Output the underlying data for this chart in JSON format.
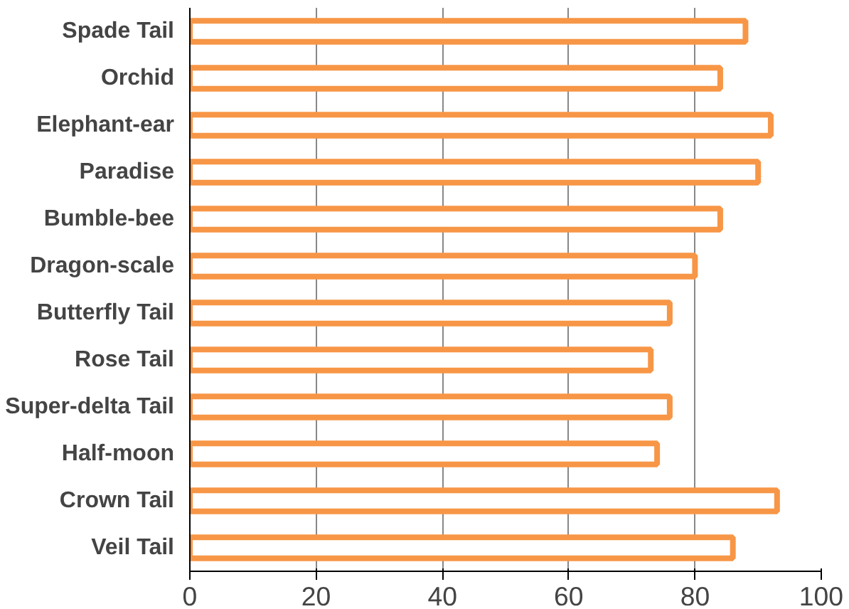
{
  "chart_data": {
    "type": "bar",
    "orientation": "horizontal",
    "categories": [
      "Spade Tail",
      "Orchid",
      "Elephant-ear",
      "Paradise",
      "Bumble-bee",
      "Dragon-scale",
      "Butterfly Tail",
      "Rose Tail",
      "Super-delta Tail",
      "Half-moon",
      "Crown Tail",
      "Veil Tail"
    ],
    "values": [
      88,
      84,
      92,
      90,
      84,
      80,
      76,
      73,
      76,
      74,
      93,
      86
    ],
    "color": "#f79646",
    "xlim": [
      0,
      100
    ],
    "xticks": [
      0,
      20,
      40,
      60,
      80,
      100
    ],
    "grid": "x"
  }
}
